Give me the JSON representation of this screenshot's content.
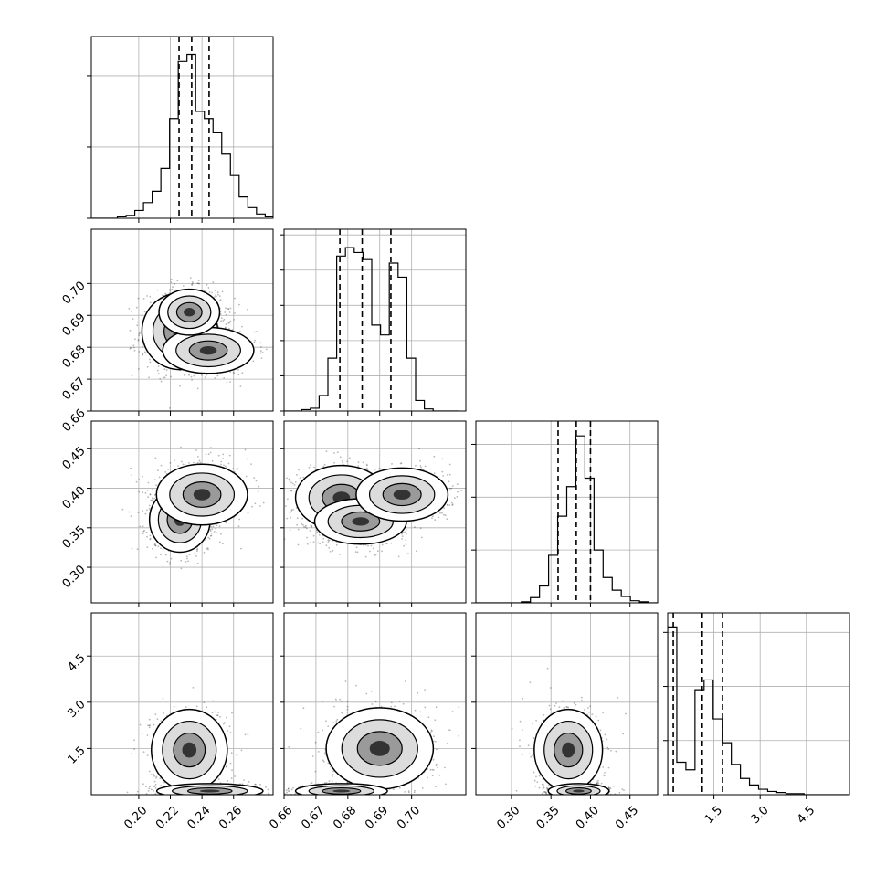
{
  "chart_data": {
    "type": "corner",
    "dimensions": [
      {
        "range": [
          0.17,
          0.285
        ],
        "ticks": [
          0.2,
          0.22,
          0.24,
          0.26
        ],
        "tick_labels": [
          "0.20",
          "0.22",
          "0.24",
          "0.26"
        ],
        "quantiles": [
          0.2255,
          0.2335,
          0.2445
        ]
      },
      {
        "range": [
          0.66,
          0.717
        ],
        "ticks": [
          0.66,
          0.67,
          0.68,
          0.69,
          0.7
        ],
        "tick_labels": [
          "0.66",
          "0.67",
          "0.68",
          "0.69",
          "0.70"
        ],
        "quantiles": [
          0.6775,
          0.6845,
          0.6935
        ]
      },
      {
        "range": [
          0.255,
          0.485
        ],
        "ticks": [
          0.3,
          0.35,
          0.4,
          0.45
        ],
        "tick_labels": [
          "0.30",
          "0.35",
          "0.40",
          "0.45"
        ],
        "quantiles": [
          0.359,
          0.382,
          0.4
        ]
      },
      {
        "range": [
          0.0,
          5.9
        ],
        "ticks": [
          1.5,
          3.0,
          4.5
        ],
        "tick_labels": [
          "1.5",
          "3.0",
          "4.5"
        ],
        "quantiles": [
          0.18,
          1.12,
          1.78
        ]
      }
    ],
    "histograms": [
      {
        "bins": [
          0.17,
          0.1755,
          0.181,
          0.1865,
          0.192,
          0.1975,
          0.203,
          0.2085,
          0.214,
          0.2195,
          0.225,
          0.2305,
          0.236,
          0.2415,
          0.247,
          0.2525,
          0.258,
          0.2635,
          0.269,
          0.2745,
          0.28,
          0.2855
        ],
        "counts": [
          0,
          0,
          0,
          2,
          4,
          11,
          22,
          38,
          70,
          140,
          220,
          230,
          150,
          140,
          120,
          90,
          60,
          30,
          15,
          6,
          2
        ],
        "ymax": 255,
        "yticks": [
          0,
          100,
          200
        ]
      },
      {
        "bins": [
          0.66,
          0.66275,
          0.6655,
          0.66825,
          0.671,
          0.67375,
          0.6765,
          0.67925,
          0.682,
          0.68475,
          0.6875,
          0.69025,
          0.693,
          0.69575,
          0.6985,
          0.70125,
          0.704,
          0.70675,
          0.7095,
          0.71225,
          0.715
        ],
        "counts": [
          0,
          0,
          2,
          4,
          22,
          75,
          220,
          232,
          225,
          215,
          122,
          108,
          210,
          190,
          75,
          15,
          3,
          0,
          0,
          0
        ],
        "ymax": 258,
        "yticks": [
          0,
          50,
          100,
          150,
          200,
          250
        ]
      },
      {
        "bins": [
          0.255,
          0.2665,
          0.278,
          0.2895,
          0.301,
          0.3125,
          0.324,
          0.3355,
          0.347,
          0.3585,
          0.37,
          0.3815,
          0.393,
          0.4045,
          0.416,
          0.4275,
          0.439,
          0.4505,
          0.462,
          0.4735,
          0.485
        ],
        "counts": [
          0,
          0,
          0,
          0,
          0,
          1,
          5,
          16,
          45,
          82,
          110,
          158,
          118,
          50,
          24,
          12,
          6,
          2,
          1,
          0
        ],
        "ymax": 172,
        "yticks": [
          0,
          50,
          100,
          150
        ]
      },
      {
        "bins": [
          0.0,
          0.295,
          0.59,
          0.885,
          1.18,
          1.475,
          1.77,
          2.065,
          2.36,
          2.655,
          2.95,
          3.245,
          3.54,
          3.835,
          4.13,
          4.425,
          4.72,
          5.015,
          5.31,
          5.605,
          5.9
        ],
        "counts": [
          155,
          30,
          23,
          97,
          106,
          70,
          48,
          28,
          15,
          9,
          5,
          3,
          2,
          1,
          1,
          0,
          0,
          0,
          0,
          0
        ],
        "ymax": 168,
        "yticks": [
          0,
          50,
          100,
          150
        ]
      }
    ],
    "joint_modes": {
      "p1": [
        [
          0.226,
          0.685,
          0.01,
          0.005
        ],
        [
          0.244,
          0.679,
          0.012,
          0.003
        ],
        [
          0.232,
          0.691,
          0.008,
          0.003
        ]
      ],
      "p2": [
        [
          0.226,
          0.36,
          0.008,
          0.017
        ],
        [
          0.24,
          0.392,
          0.012,
          0.016
        ]
      ],
      "p3": [
        [
          0.678,
          0.388,
          0.006,
          0.017
        ],
        [
          0.684,
          0.358,
          0.006,
          0.012
        ],
        [
          0.697,
          0.392,
          0.006,
          0.014
        ]
      ],
      "p4": [
        [
          0.232,
          1.45,
          0.01,
          0.55
        ],
        [
          0.245,
          0.12,
          0.014,
          0.1
        ]
      ]
    }
  }
}
